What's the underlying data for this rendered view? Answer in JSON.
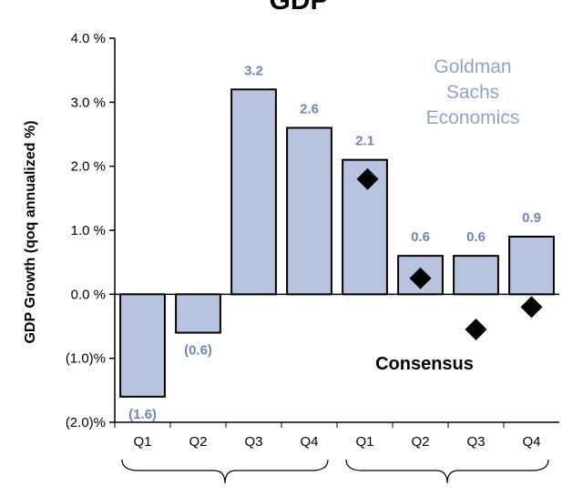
{
  "chart_data": {
    "type": "bar",
    "title": "GDP",
    "ylabel": "GDP Growth (qoq annualized %)",
    "xlabel": "",
    "ylim": [
      -2.0,
      4.0
    ],
    "y_ticks": [
      4.0,
      3.0,
      2.0,
      1.0,
      0.0,
      -1.0,
      -2.0
    ],
    "y_tick_labels": [
      "4.0 %",
      "3.0 %",
      "2.0 %",
      "1.0 %",
      "0.0 %",
      "(1.0)%",
      "(2.0)%"
    ],
    "categories": [
      "Q1",
      "Q2",
      "Q3",
      "Q4",
      "Q1",
      "Q2",
      "Q3",
      "Q4"
    ],
    "series": [
      {
        "name": "Goldman Sachs Economics",
        "values": [
          -1.6,
          -0.6,
          3.2,
          2.6,
          2.1,
          0.6,
          0.6,
          0.9
        ],
        "labels": [
          "(1.6)",
          "(0.6)",
          "3.2",
          "2.6",
          "2.1",
          "0.6",
          "0.6",
          "0.9"
        ]
      },
      {
        "name": "Consensus",
        "values": [
          null,
          null,
          null,
          null,
          1.8,
          0.25,
          -0.55,
          -0.2
        ]
      }
    ],
    "annotations": {
      "goldman": [
        "Goldman",
        "Sachs",
        "Economics"
      ],
      "consensus": "Consensus"
    },
    "colors": {
      "bar": "#b8c3e0",
      "label": "#6f86b8",
      "goldman": "#8fa2d0",
      "marker": "#000000"
    }
  }
}
